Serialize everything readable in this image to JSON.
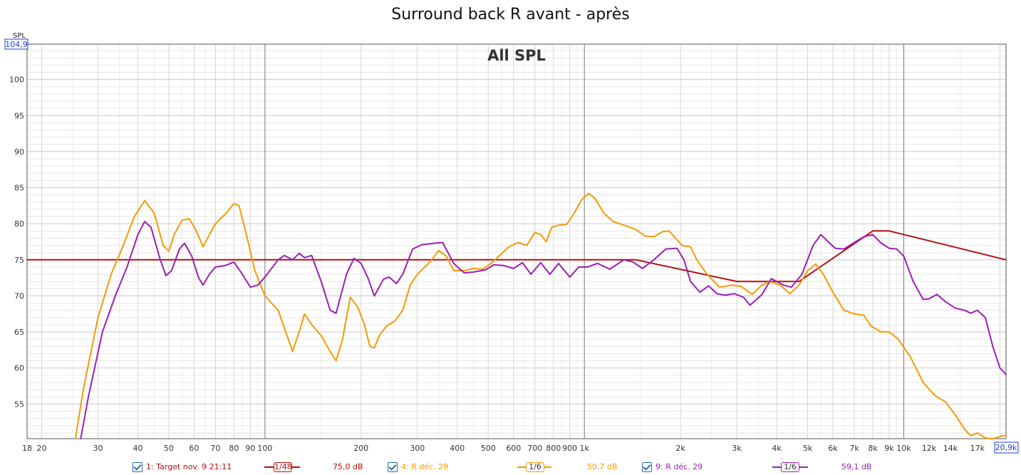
{
  "title": "Surround back R avant - après",
  "chart_data": {
    "type": "line",
    "title": "Surround back R avant - après",
    "subtitle": "All SPL",
    "ylabel": "SPL",
    "x_scale": "log",
    "xlim": [
      18,
      20900
    ],
    "ylim": [
      50.2,
      104.9
    ],
    "y_top_label": "104,9",
    "x_right_label": "20,9k",
    "y_ticks": [
      55,
      60,
      65,
      70,
      75,
      80,
      85,
      90,
      95,
      100
    ],
    "x_ticks": [
      {
        "v": 18,
        "label": "18"
      },
      {
        "v": 20,
        "label": "20"
      },
      {
        "v": 30,
        "label": "30"
      },
      {
        "v": 40,
        "label": "40"
      },
      {
        "v": 50,
        "label": "50"
      },
      {
        "v": 60,
        "label": "60"
      },
      {
        "v": 70,
        "label": "70"
      },
      {
        "v": 80,
        "label": "80"
      },
      {
        "v": 90,
        "label": "90"
      },
      {
        "v": 100,
        "label": "100"
      },
      {
        "v": 200,
        "label": "200"
      },
      {
        "v": 300,
        "label": "300"
      },
      {
        "v": 400,
        "label": "400"
      },
      {
        "v": 500,
        "label": "500"
      },
      {
        "v": 600,
        "label": "600"
      },
      {
        "v": 700,
        "label": "700"
      },
      {
        "v": 800,
        "label": "800"
      },
      {
        "v": 900,
        "label": "900"
      },
      {
        "v": 1000,
        "label": "1k"
      },
      {
        "v": 2000,
        "label": "2k"
      },
      {
        "v": 3000,
        "label": "3k"
      },
      {
        "v": 4000,
        "label": "4k"
      },
      {
        "v": 5000,
        "label": "5k"
      },
      {
        "v": 6000,
        "label": "6k"
      },
      {
        "v": 7000,
        "label": "7k"
      },
      {
        "v": 8000,
        "label": "8k"
      },
      {
        "v": 9000,
        "label": "9k"
      },
      {
        "v": 10000,
        "label": "10k"
      },
      {
        "v": 12000,
        "label": "12k"
      },
      {
        "v": 14000,
        "label": "14k"
      },
      {
        "v": 17000,
        "label": "17k"
      }
    ],
    "grid": true,
    "series": [
      {
        "name": "1: Target nov. 9 21:11",
        "color": "#b01010",
        "smoothing": "1/48",
        "level": "75,0 dB",
        "points": [
          [
            18,
            75
          ],
          [
            1450,
            75
          ],
          [
            3000,
            72
          ],
          [
            4700,
            72
          ],
          [
            8000,
            79
          ],
          [
            9000,
            79
          ],
          [
            20900,
            75
          ]
        ]
      },
      {
        "name": "4: R déc. 29",
        "color": "#f59a00",
        "smoothing": "1/6",
        "level": "50,7 dB",
        "points": [
          [
            25.5,
            50.2
          ],
          [
            27,
            57
          ],
          [
            30,
            67
          ],
          [
            33,
            73
          ],
          [
            36,
            77
          ],
          [
            39,
            81
          ],
          [
            42,
            83.2
          ],
          [
            45,
            81.5
          ],
          [
            48,
            77
          ],
          [
            50,
            76.2
          ],
          [
            52,
            78.5
          ],
          [
            55,
            80.5
          ],
          [
            58,
            80.7
          ],
          [
            61,
            79
          ],
          [
            64,
            76.8
          ],
          [
            67,
            78.5
          ],
          [
            70,
            80
          ],
          [
            75,
            81.3
          ],
          [
            80,
            82.8
          ],
          [
            83,
            82.5
          ],
          [
            88,
            78
          ],
          [
            93,
            73.5
          ],
          [
            100,
            70
          ],
          [
            110,
            68
          ],
          [
            122,
            62.3
          ],
          [
            128,
            65
          ],
          [
            133,
            67.5
          ],
          [
            140,
            66
          ],
          [
            150,
            64.5
          ],
          [
            160,
            62.3
          ],
          [
            167,
            61
          ],
          [
            175,
            64
          ],
          [
            180,
            67
          ],
          [
            185,
            69.8
          ],
          [
            195,
            68.5
          ],
          [
            205,
            66
          ],
          [
            213,
            63
          ],
          [
            220,
            62.8
          ],
          [
            228,
            64.5
          ],
          [
            240,
            65.8
          ],
          [
            255,
            66.5
          ],
          [
            270,
            68
          ],
          [
            285,
            71.5
          ],
          [
            300,
            73
          ],
          [
            330,
            74.8
          ],
          [
            350,
            76.3
          ],
          [
            370,
            75.5
          ],
          [
            390,
            73.5
          ],
          [
            420,
            73.5
          ],
          [
            450,
            73.8
          ],
          [
            480,
            73.7
          ],
          [
            510,
            74.5
          ],
          [
            540,
            75.5
          ],
          [
            580,
            76.8
          ],
          [
            620,
            77.4
          ],
          [
            660,
            77
          ],
          [
            700,
            78.8
          ],
          [
            730,
            78.5
          ],
          [
            760,
            77.5
          ],
          [
            790,
            79.5
          ],
          [
            830,
            79.8
          ],
          [
            880,
            79.9
          ],
          [
            930,
            81.5
          ],
          [
            980,
            83.3
          ],
          [
            1030,
            84.2
          ],
          [
            1080,
            83.5
          ],
          [
            1150,
            81.5
          ],
          [
            1230,
            80.3
          ],
          [
            1350,
            79.7
          ],
          [
            1450,
            79.2
          ],
          [
            1550,
            78.3
          ],
          [
            1650,
            78.2
          ],
          [
            1760,
            78.9
          ],
          [
            1840,
            79
          ],
          [
            1930,
            78
          ],
          [
            2020,
            77
          ],
          [
            2150,
            76.8
          ],
          [
            2250,
            75
          ],
          [
            2400,
            73.2
          ],
          [
            2650,
            71.2
          ],
          [
            2900,
            71.5
          ],
          [
            3100,
            71.3
          ],
          [
            3350,
            70.2
          ],
          [
            3600,
            71.5
          ],
          [
            3800,
            72
          ],
          [
            4100,
            71.5
          ],
          [
            4400,
            70.3
          ],
          [
            4700,
            71.5
          ],
          [
            5000,
            73.5
          ],
          [
            5300,
            74.4
          ],
          [
            5600,
            73
          ],
          [
            6000,
            70.5
          ],
          [
            6500,
            68
          ],
          [
            7000,
            67.5
          ],
          [
            7500,
            67.3
          ],
          [
            7900,
            65.8
          ],
          [
            8500,
            65
          ],
          [
            9000,
            65
          ],
          [
            9600,
            64
          ],
          [
            10500,
            61.5
          ],
          [
            11500,
            58
          ],
          [
            12500,
            56.2
          ],
          [
            13500,
            55.3
          ],
          [
            14500,
            53.5
          ],
          [
            15500,
            51.5
          ],
          [
            16200,
            50.6
          ],
          [
            17000,
            51
          ],
          [
            18000,
            50.3
          ],
          [
            19000,
            50.2
          ],
          [
            20900,
            50.7
          ]
        ]
      },
      {
        "name": "9: R déc. 29",
        "color": "#9b1fb3",
        "smoothing": "1/6",
        "level": "59,1 dB",
        "points": [
          [
            26.5,
            50.2
          ],
          [
            28,
            56
          ],
          [
            31,
            65
          ],
          [
            34,
            70
          ],
          [
            37,
            74
          ],
          [
            40,
            78.5
          ],
          [
            42,
            80.3
          ],
          [
            44,
            79.5
          ],
          [
            47,
            75
          ],
          [
            49,
            72.8
          ],
          [
            51,
            73.5
          ],
          [
            54,
            76.5
          ],
          [
            56,
            77.3
          ],
          [
            59,
            75.5
          ],
          [
            62,
            72.5
          ],
          [
            64,
            71.5
          ],
          [
            67,
            73
          ],
          [
            70,
            74
          ],
          [
            75,
            74.2
          ],
          [
            80,
            74.7
          ],
          [
            85,
            73
          ],
          [
            90,
            71.2
          ],
          [
            95,
            71.5
          ],
          [
            100,
            72.6
          ],
          [
            110,
            75
          ],
          [
            115,
            75.6
          ],
          [
            122,
            75
          ],
          [
            128,
            75.9
          ],
          [
            133,
            75.3
          ],
          [
            140,
            75.6
          ],
          [
            150,
            72
          ],
          [
            160,
            68
          ],
          [
            167,
            67.6
          ],
          [
            180,
            73
          ],
          [
            190,
            75.2
          ],
          [
            200,
            74.5
          ],
          [
            210,
            72.5
          ],
          [
            220,
            70
          ],
          [
            235,
            72.3
          ],
          [
            245,
            72.6
          ],
          [
            258,
            71.7
          ],
          [
            270,
            73
          ],
          [
            290,
            76.5
          ],
          [
            310,
            77.1
          ],
          [
            340,
            77.3
          ],
          [
            360,
            77.4
          ],
          [
            390,
            74.5
          ],
          [
            420,
            73.2
          ],
          [
            450,
            73.3
          ],
          [
            490,
            73.6
          ],
          [
            520,
            74.3
          ],
          [
            560,
            74.2
          ],
          [
            600,
            73.8
          ],
          [
            640,
            74.6
          ],
          [
            680,
            73
          ],
          [
            730,
            74.6
          ],
          [
            780,
            73
          ],
          [
            830,
            74.5
          ],
          [
            900,
            72.6
          ],
          [
            960,
            74
          ],
          [
            1020,
            74
          ],
          [
            1100,
            74.5
          ],
          [
            1200,
            73.7
          ],
          [
            1330,
            75
          ],
          [
            1420,
            74.7
          ],
          [
            1520,
            73.8
          ],
          [
            1650,
            75
          ],
          [
            1800,
            76.5
          ],
          [
            1950,
            76.6
          ],
          [
            2050,
            75
          ],
          [
            2150,
            72
          ],
          [
            2300,
            70.5
          ],
          [
            2450,
            71.4
          ],
          [
            2600,
            70.3
          ],
          [
            2750,
            70.1
          ],
          [
            2950,
            70.3
          ],
          [
            3150,
            69.8
          ],
          [
            3300,
            68.7
          ],
          [
            3600,
            70.2
          ],
          [
            3850,
            72.4
          ],
          [
            4200,
            71.5
          ],
          [
            4450,
            71.2
          ],
          [
            4800,
            73
          ],
          [
            5200,
            77
          ],
          [
            5500,
            78.5
          ],
          [
            5800,
            77.5
          ],
          [
            6100,
            76.6
          ],
          [
            6500,
            76.5
          ],
          [
            7000,
            77.4
          ],
          [
            7500,
            78.2
          ],
          [
            8000,
            78.5
          ],
          [
            8500,
            77.3
          ],
          [
            9000,
            76.6
          ],
          [
            9500,
            76.5
          ],
          [
            10000,
            75.5
          ],
          [
            10700,
            72
          ],
          [
            11500,
            69.5
          ],
          [
            12000,
            69.6
          ],
          [
            12700,
            70.2
          ],
          [
            13500,
            69.2
          ],
          [
            14500,
            68.3
          ],
          [
            15500,
            68
          ],
          [
            16200,
            67.6
          ],
          [
            17000,
            68
          ],
          [
            18000,
            67
          ],
          [
            19000,
            63
          ],
          [
            20000,
            60
          ],
          [
            20900,
            59.1
          ]
        ]
      }
    ]
  },
  "legend": [
    {
      "label": "1: Target nov. 9 21:11",
      "smoothing": "1/48",
      "level": "75,0 dB",
      "color": "#b01010"
    },
    {
      "label": "4: R déc. 29",
      "smoothing": "1/6",
      "level": "50,7 dB",
      "color": "#f59a00"
    },
    {
      "label": "9: R déc. 29",
      "smoothing": "1/6",
      "level": "59,1 dB",
      "color": "#9b1fb3"
    }
  ]
}
